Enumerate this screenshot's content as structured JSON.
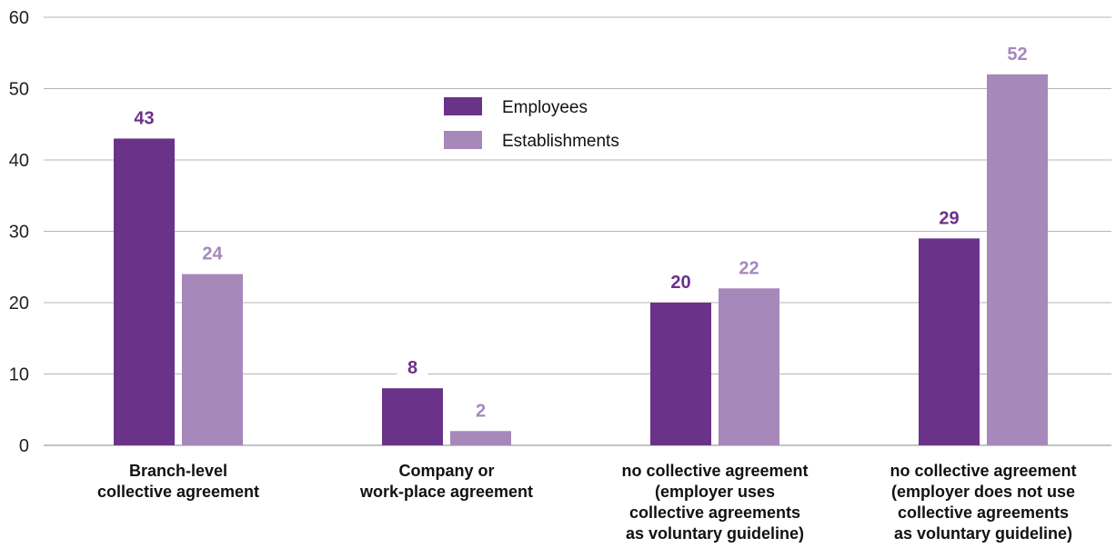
{
  "chart_data": {
    "type": "bar",
    "categories": [
      [
        "Branch-level",
        "collective agreement"
      ],
      [
        "Company or",
        "work-place agreement"
      ],
      [
        "no collective agreement",
        "(employer uses",
        "collective agreements",
        "as voluntary guideline)"
      ],
      [
        "no collective agreement",
        "(employer does not use",
        "collective agreements",
        "as voluntary guideline)"
      ]
    ],
    "series": [
      {
        "name": "Employees",
        "values": [
          43,
          8,
          20,
          29
        ],
        "color": "#6b3289",
        "label_color": "#6b3289"
      },
      {
        "name": "Establishments",
        "values": [
          24,
          2,
          22,
          52
        ],
        "color": "#a688bb",
        "label_color": "#a688bb"
      }
    ],
    "yticks": [
      0,
      10,
      20,
      30,
      40,
      50,
      60
    ],
    "ylim": [
      0,
      60
    ],
    "grid": true,
    "legend_position": "top-center",
    "xlabel": "",
    "ylabel": "",
    "title": ""
  }
}
